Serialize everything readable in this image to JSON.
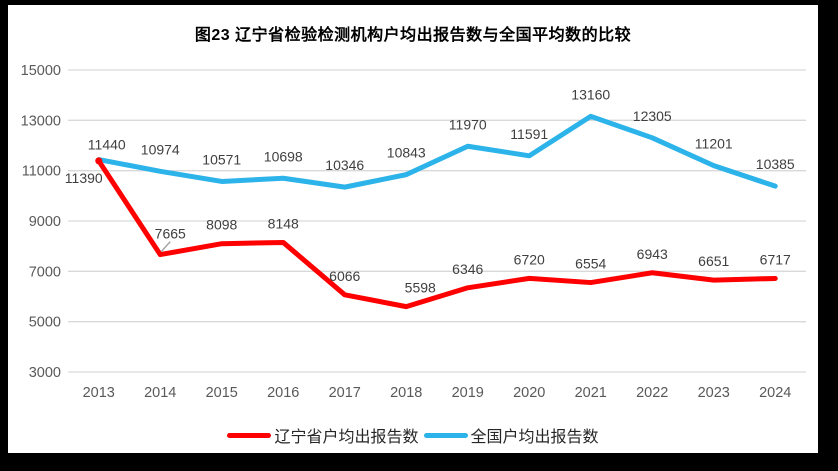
{
  "title": "图23 辽宁省检验检测机构户均出报告数与全国平均数的比较",
  "legend": {
    "items": [
      {
        "label": "辽宁省户均出报告数",
        "color": "#ff0000"
      },
      {
        "label": "全国户均出报告数",
        "color": "#2cb3e9"
      }
    ]
  },
  "chart_data": {
    "type": "line",
    "title": "图23 辽宁省检验检测机构户均出报告数与全国平均数的比较",
    "categories": [
      "2013",
      "2014",
      "2015",
      "2016",
      "2017",
      "2018",
      "2019",
      "2020",
      "2021",
      "2022",
      "2023",
      "2024"
    ],
    "series": [
      {
        "name": "辽宁省户均出报告数",
        "color": "#ff0000",
        "values": [
          11390,
          7665,
          8098,
          8148,
          6066,
          5598,
          6346,
          6720,
          6554,
          6943,
          6651,
          6717
        ]
      },
      {
        "name": "全国户均出报告数",
        "color": "#2cb3e9",
        "values": [
          11440,
          10974,
          10571,
          10698,
          10346,
          10843,
          11970,
          11591,
          13160,
          12305,
          11201,
          10385
        ]
      }
    ],
    "xlabel": "",
    "ylabel": "",
    "ylim": [
      3000,
      15000
    ],
    "yticks": [
      15000,
      13000,
      11000,
      9000,
      7000,
      5000,
      3000
    ],
    "grid": true,
    "legend_position": "bottom",
    "colors": {
      "gridline": "#d9d9d9",
      "axis_label": "#595959",
      "data_label": "#404040",
      "leader_line": "#a6a6a6",
      "frame": "#000000",
      "background": "#ffffff"
    }
  }
}
